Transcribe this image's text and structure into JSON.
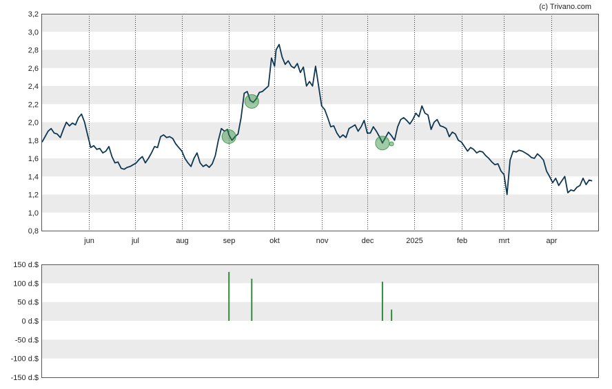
{
  "credit": "(c) Trivano.com",
  "chart_data": [
    {
      "type": "line",
      "title": "",
      "xlabel": "",
      "ylabel": "",
      "ylim": [
        0.8,
        3.2
      ],
      "yticks": [
        "3,2",
        "3,0",
        "2,8",
        "2,6",
        "2,4",
        "2,2",
        "2,0",
        "1,8",
        "1,6",
        "1,4",
        "1,2",
        "1,0",
        "0,8"
      ],
      "grid": "horizontal bands, vertical dotted month lines",
      "line_color": "#0d3652",
      "marker_color": "#2e8b3a",
      "band_color": "#ebebeb",
      "x_range": [
        "2024-05-01",
        "2025-05-02"
      ],
      "xtick_labels": [
        {
          "date": "2024-06-01",
          "label": "jun"
        },
        {
          "date": "2024-07-01",
          "label": "jul"
        },
        {
          "date": "2024-08-01",
          "label": "aug"
        },
        {
          "date": "2024-09-01",
          "label": "sep"
        },
        {
          "date": "2024-10-01",
          "label": "okt"
        },
        {
          "date": "2024-11-01",
          "label": "nov"
        },
        {
          "date": "2024-12-01",
          "label": "dec"
        },
        {
          "date": "2025-01-01",
          "label": "2025"
        },
        {
          "date": "2025-02-01",
          "label": "feb"
        },
        {
          "date": "2025-03-01",
          "label": "mrt"
        },
        {
          "date": "2025-04-01",
          "label": "apr"
        }
      ],
      "series": [
        {
          "points": [
            [
              "2024-05-01",
              1.78
            ],
            [
              "2024-05-03",
              1.84
            ],
            [
              "2024-05-05",
              1.9
            ],
            [
              "2024-05-07",
              1.93
            ],
            [
              "2024-05-09",
              1.88
            ],
            [
              "2024-05-11",
              1.87
            ],
            [
              "2024-05-13",
              1.83
            ],
            [
              "2024-05-15",
              1.92
            ],
            [
              "2024-05-17",
              2.0
            ],
            [
              "2024-05-19",
              1.96
            ],
            [
              "2024-05-21",
              1.99
            ],
            [
              "2024-05-23",
              1.97
            ],
            [
              "2024-05-25",
              2.05
            ],
            [
              "2024-05-27",
              2.09
            ],
            [
              "2024-05-29",
              2.0
            ],
            [
              "2024-05-31",
              1.86
            ],
            [
              "2024-06-01",
              1.79
            ],
            [
              "2024-06-02",
              1.72
            ],
            [
              "2024-06-04",
              1.74
            ],
            [
              "2024-06-06",
              1.7
            ],
            [
              "2024-06-08",
              1.71
            ],
            [
              "2024-06-10",
              1.66
            ],
            [
              "2024-06-12",
              1.68
            ],
            [
              "2024-06-14",
              1.73
            ],
            [
              "2024-06-16",
              1.62
            ],
            [
              "2024-06-18",
              1.55
            ],
            [
              "2024-06-20",
              1.56
            ],
            [
              "2024-06-22",
              1.49
            ],
            [
              "2024-06-24",
              1.48
            ],
            [
              "2024-06-26",
              1.5
            ],
            [
              "2024-06-28",
              1.51
            ],
            [
              "2024-06-30",
              1.53
            ],
            [
              "2024-07-02",
              1.55
            ],
            [
              "2024-07-04",
              1.59
            ],
            [
              "2024-07-06",
              1.62
            ],
            [
              "2024-07-08",
              1.55
            ],
            [
              "2024-07-10",
              1.6
            ],
            [
              "2024-07-12",
              1.66
            ],
            [
              "2024-07-14",
              1.73
            ],
            [
              "2024-07-16",
              1.72
            ],
            [
              "2024-07-18",
              1.84
            ],
            [
              "2024-07-20",
              1.86
            ],
            [
              "2024-07-22",
              1.83
            ],
            [
              "2024-07-24",
              1.84
            ],
            [
              "2024-07-26",
              1.82
            ],
            [
              "2024-07-28",
              1.76
            ],
            [
              "2024-07-30",
              1.72
            ],
            [
              "2024-08-01",
              1.68
            ],
            [
              "2024-08-03",
              1.6
            ],
            [
              "2024-08-05",
              1.55
            ],
            [
              "2024-08-07",
              1.51
            ],
            [
              "2024-08-09",
              1.6
            ],
            [
              "2024-08-11",
              1.66
            ],
            [
              "2024-08-13",
              1.55
            ],
            [
              "2024-08-15",
              1.51
            ],
            [
              "2024-08-17",
              1.53
            ],
            [
              "2024-08-19",
              1.5
            ],
            [
              "2024-08-21",
              1.54
            ],
            [
              "2024-08-23",
              1.63
            ],
            [
              "2024-08-25",
              1.8
            ],
            [
              "2024-08-27",
              1.93
            ],
            [
              "2024-08-29",
              1.9
            ],
            [
              "2024-08-31",
              1.92
            ],
            [
              "2024-09-01",
              1.86
            ],
            [
              "2024-09-03",
              1.8
            ],
            [
              "2024-09-05",
              1.84
            ],
            [
              "2024-09-07",
              1.87
            ],
            [
              "2024-09-09",
              2.05
            ],
            [
              "2024-09-11",
              2.32
            ],
            [
              "2024-09-13",
              2.34
            ],
            [
              "2024-09-15",
              2.24
            ],
            [
              "2024-09-17",
              2.22
            ],
            [
              "2024-09-19",
              2.26
            ],
            [
              "2024-09-21",
              2.33
            ],
            [
              "2024-09-23",
              2.34
            ],
            [
              "2024-09-25",
              2.37
            ],
            [
              "2024-09-27",
              2.4
            ],
            [
              "2024-09-29",
              2.71
            ],
            [
              "2024-10-01",
              2.62
            ],
            [
              "2024-10-02",
              2.8
            ],
            [
              "2024-10-04",
              2.86
            ],
            [
              "2024-10-06",
              2.72
            ],
            [
              "2024-10-08",
              2.64
            ],
            [
              "2024-10-10",
              2.68
            ],
            [
              "2024-10-12",
              2.62
            ],
            [
              "2024-10-14",
              2.6
            ],
            [
              "2024-10-16",
              2.65
            ],
            [
              "2024-10-18",
              2.55
            ],
            [
              "2024-10-20",
              2.61
            ],
            [
              "2024-10-22",
              2.4
            ],
            [
              "2024-10-24",
              2.45
            ],
            [
              "2024-10-26",
              2.4
            ],
            [
              "2024-10-28",
              2.62
            ],
            [
              "2024-10-30",
              2.4
            ],
            [
              "2024-11-01",
              2.18
            ],
            [
              "2024-11-03",
              2.14
            ],
            [
              "2024-11-05",
              2.05
            ],
            [
              "2024-11-07",
              1.95
            ],
            [
              "2024-11-09",
              1.96
            ],
            [
              "2024-11-11",
              1.88
            ],
            [
              "2024-11-13",
              1.83
            ],
            [
              "2024-11-15",
              1.86
            ],
            [
              "2024-11-17",
              1.83
            ],
            [
              "2024-11-19",
              1.93
            ],
            [
              "2024-11-21",
              1.95
            ],
            [
              "2024-11-23",
              1.97
            ],
            [
              "2024-11-25",
              1.9
            ],
            [
              "2024-11-27",
              1.95
            ],
            [
              "2024-11-29",
              2.02
            ],
            [
              "2024-12-01",
              1.88
            ],
            [
              "2024-12-03",
              1.88
            ],
            [
              "2024-12-05",
              1.95
            ],
            [
              "2024-12-07",
              1.9
            ],
            [
              "2024-12-09",
              1.84
            ],
            [
              "2024-12-11",
              1.77
            ],
            [
              "2024-12-13",
              1.83
            ],
            [
              "2024-12-15",
              1.89
            ],
            [
              "2024-12-17",
              1.85
            ],
            [
              "2024-12-19",
              1.8
            ],
            [
              "2024-12-21",
              1.95
            ],
            [
              "2024-12-23",
              2.03
            ],
            [
              "2024-12-25",
              2.05
            ],
            [
              "2024-12-27",
              2.02
            ],
            [
              "2024-12-29",
              1.98
            ],
            [
              "2024-12-31",
              2.03
            ],
            [
              "2025-01-02",
              2.1
            ],
            [
              "2025-01-04",
              2.06
            ],
            [
              "2025-01-06",
              2.18
            ],
            [
              "2025-01-08",
              2.1
            ],
            [
              "2025-01-10",
              2.08
            ],
            [
              "2025-01-12",
              1.92
            ],
            [
              "2025-01-14",
              2.0
            ],
            [
              "2025-01-16",
              2.03
            ],
            [
              "2025-01-18",
              1.96
            ],
            [
              "2025-01-20",
              1.95
            ],
            [
              "2025-01-22",
              1.93
            ],
            [
              "2025-01-24",
              1.84
            ],
            [
              "2025-01-26",
              1.89
            ],
            [
              "2025-01-28",
              1.87
            ],
            [
              "2025-01-30",
              1.8
            ],
            [
              "2025-02-01",
              1.78
            ],
            [
              "2025-02-03",
              1.73
            ],
            [
              "2025-02-05",
              1.68
            ],
            [
              "2025-02-07",
              1.72
            ],
            [
              "2025-02-09",
              1.7
            ],
            [
              "2025-02-11",
              1.66
            ],
            [
              "2025-02-13",
              1.68
            ],
            [
              "2025-02-15",
              1.67
            ],
            [
              "2025-02-17",
              1.63
            ],
            [
              "2025-02-19",
              1.6
            ],
            [
              "2025-02-21",
              1.56
            ],
            [
              "2025-02-23",
              1.53
            ],
            [
              "2025-02-25",
              1.54
            ],
            [
              "2025-02-27",
              1.46
            ],
            [
              "2025-03-01",
              1.42
            ],
            [
              "2025-03-03",
              1.2
            ],
            [
              "2025-03-05",
              1.58
            ],
            [
              "2025-03-07",
              1.68
            ],
            [
              "2025-03-09",
              1.67
            ],
            [
              "2025-03-11",
              1.69
            ],
            [
              "2025-03-13",
              1.68
            ],
            [
              "2025-03-15",
              1.66
            ],
            [
              "2025-03-17",
              1.64
            ],
            [
              "2025-03-19",
              1.61
            ],
            [
              "2025-03-21",
              1.6
            ],
            [
              "2025-03-23",
              1.65
            ],
            [
              "2025-03-25",
              1.62
            ],
            [
              "2025-03-27",
              1.58
            ],
            [
              "2025-03-29",
              1.46
            ],
            [
              "2025-03-31",
              1.4
            ],
            [
              "2025-04-02",
              1.33
            ],
            [
              "2025-04-04",
              1.38
            ],
            [
              "2025-04-06",
              1.3
            ],
            [
              "2025-04-08",
              1.35
            ],
            [
              "2025-04-10",
              1.4
            ],
            [
              "2025-04-12",
              1.22
            ],
            [
              "2025-04-14",
              1.25
            ],
            [
              "2025-04-16",
              1.24
            ],
            [
              "2025-04-18",
              1.28
            ],
            [
              "2025-04-20",
              1.3
            ],
            [
              "2025-04-22",
              1.38
            ],
            [
              "2025-04-24",
              1.31
            ],
            [
              "2025-04-26",
              1.36
            ],
            [
              "2025-04-28",
              1.35
            ]
          ],
          "markers": [
            {
              "date": "2024-09-01",
              "value": 1.84
            },
            {
              "date": "2024-09-16",
              "value": 2.23
            },
            {
              "date": "2024-12-11",
              "value": 1.77
            },
            {
              "date": "2024-12-17",
              "value": 1.76
            }
          ]
        }
      ]
    },
    {
      "type": "bar",
      "title": "",
      "xlabel": "",
      "ylabel": "",
      "ylim": [
        -150,
        150
      ],
      "yticks": [
        "150 d.$",
        "100 d.$",
        "50 d.$",
        "0 d.$",
        "-50 d.$",
        "-100 d.$",
        "-150 d.$"
      ],
      "bar_color": "#2e8b3a",
      "series": [
        {
          "points": [
            [
              "2024-09-01",
              130
            ],
            [
              "2024-09-16",
              112
            ],
            [
              "2024-12-11",
              104
            ],
            [
              "2024-12-17",
              30
            ]
          ]
        }
      ]
    }
  ]
}
